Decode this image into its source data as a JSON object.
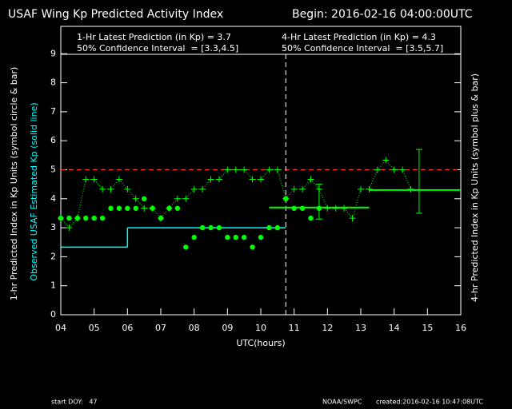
{
  "chart_data": {
    "type": "line",
    "title": "USAF Wing Kp Predicted Activity Index",
    "subtitle": "Begin: 2016-02-16 04:00:00UTC",
    "annotations": [
      "1-Hr Latest Prediction (in Kp) = 3.7",
      "50% Confidence Interval  = [3.3,4.5]",
      "4-Hr Latest Prediction (in Kp) = 4.3",
      "50% Confidence Interval  = [3.5,5.7]"
    ],
    "ylabel": "1-hr Predicted Index in Kp Units (symbol circle & bar)",
    "ylabel_observed": "Observed USAF Estimated Kp (solid line)",
    "y2label": "4-hr Predicted Index in Kp Units (symbol plus & bar)",
    "xlabel": "UTC(hours)",
    "footer_left": "start DOY:   47",
    "footer_mid": "NOAA/SWPC",
    "footer_right": "created:2016-02-16 10:47:08UTC",
    "xlim": [
      4,
      16
    ],
    "xticks": [
      {
        "value": 4,
        "label": "04"
      },
      {
        "value": 5,
        "label": "05"
      },
      {
        "value": 6,
        "label": "06"
      },
      {
        "value": 7,
        "label": "07"
      },
      {
        "value": 8,
        "label": "08"
      },
      {
        "value": 9,
        "label": "09"
      },
      10,
      11,
      12,
      13,
      14,
      15,
      16
    ],
    "ylim": [
      0,
      10
    ],
    "yticks": [
      0,
      1,
      2,
      3,
      4,
      5,
      6,
      7,
      8,
      9
    ],
    "threshold": 5,
    "threshold_color": "#ff3030",
    "now": 10.75,
    "series": [
      {
        "name": "1-hr prediction",
        "color": "#00ff00",
        "x": [
          4,
          4.25,
          4.5,
          4.75,
          5,
          5.25,
          5.5,
          5.75,
          6,
          6.25,
          6.5,
          6.75,
          7,
          7.25,
          7.5,
          7.75,
          8,
          8.25,
          8.5,
          8.75,
          9,
          9.25,
          9.5,
          9.75,
          10,
          10.25,
          10.5,
          10.75,
          11,
          11.25,
          11.5,
          11.75
        ],
        "values": [
          3.33,
          3.33,
          3.33,
          3.33,
          3.33,
          3.33,
          3.67,
          3.67,
          3.67,
          3.67,
          4,
          3.67,
          3.33,
          3.67,
          3.67,
          2.33,
          2.67,
          3,
          3,
          3,
          2.67,
          2.67,
          2.67,
          2.33,
          2.67,
          3,
          3,
          4,
          3.67,
          3.67,
          3.33,
          3.67
        ]
      },
      {
        "name": "4-hr prediction",
        "color": "#00ff00",
        "x": [
          4,
          4.25,
          4.5,
          4.75,
          5,
          5.25,
          5.5,
          5.75,
          6,
          6.25,
          6.5,
          6.75,
          7,
          7.25,
          7.5,
          7.75,
          8,
          8.25,
          8.5,
          8.75,
          9,
          9.25,
          9.5,
          9.75,
          10,
          10.25,
          10.5,
          10.75,
          11,
          11.25,
          11.5,
          11.75,
          12,
          12.25,
          12.5,
          12.75,
          13,
          13.25,
          13.5,
          13.75,
          14,
          14.25,
          14.5
        ],
        "values": [
          3.33,
          3,
          3.33,
          4.67,
          4.67,
          4.33,
          4.33,
          4.67,
          4.33,
          4,
          3.67,
          3.67,
          3.33,
          3.67,
          4,
          4,
          4.33,
          4.33,
          4.67,
          4.67,
          5,
          5,
          5,
          4.67,
          4.67,
          5,
          5,
          4,
          4.33,
          4.33,
          4.67,
          4.33,
          3.67,
          3.67,
          3.67,
          3.33,
          4.33,
          4.33,
          5,
          5.33,
          5,
          5,
          4.33
        ]
      }
    ],
    "observed": {
      "color": "#00ffff",
      "x_start": [
        4,
        6
      ],
      "x_end": [
        6,
        10.75
      ],
      "values": [
        2.33,
        3
      ]
    },
    "bar_1hr": {
      "x_range": [
        10.25,
        13.25
      ],
      "value": 3.7,
      "err_x": 11.75,
      "err": [
        3.3,
        4.5
      ]
    },
    "bar_4hr": {
      "x_range": [
        13.25,
        16
      ],
      "value": 4.3,
      "err_x": 14.75,
      "err": [
        3.5,
        5.7
      ]
    }
  }
}
